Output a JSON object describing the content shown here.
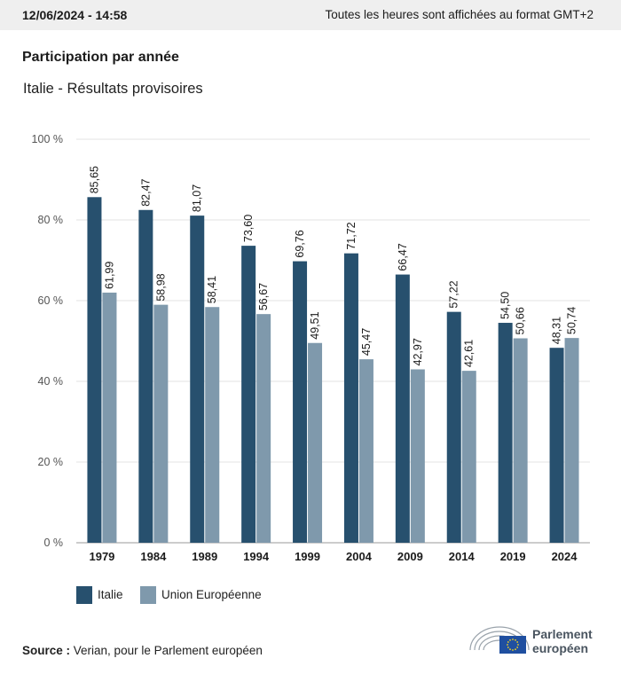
{
  "header": {
    "timestamp": "12/06/2024 - 14:58",
    "timezone_note": "Toutes les heures sont affichées au format GMT+2"
  },
  "title": "Participation par année",
  "subtitle": "Italie - Résultats provisoires",
  "chart_data": {
    "type": "bar",
    "categories": [
      "1979",
      "1984",
      "1989",
      "1994",
      "1999",
      "2004",
      "2009",
      "2014",
      "2019",
      "2024"
    ],
    "series": [
      {
        "name": "Italie",
        "values": [
          85.65,
          82.47,
          81.07,
          73.6,
          69.76,
          71.72,
          66.47,
          57.22,
          54.5,
          48.31
        ],
        "labels": [
          "85,65",
          "82,47",
          "81,07",
          "73,60",
          "69,76",
          "71,72",
          "66,47",
          "57,22",
          "54,50",
          "48,31"
        ],
        "color": "#27506e"
      },
      {
        "name": "Union Européenne",
        "values": [
          61.99,
          58.98,
          58.41,
          56.67,
          49.51,
          45.47,
          42.97,
          42.61,
          50.66,
          50.74
        ],
        "labels": [
          "61,99",
          "58,98",
          "58,41",
          "56,67",
          "49,51",
          "45,47",
          "42,97",
          "42,61",
          "50,66",
          "50,74"
        ],
        "color": "#7f99ac"
      }
    ],
    "ylim": [
      0,
      100
    ],
    "yticks": [
      "0 %",
      "20 %",
      "40 %",
      "60 %",
      "80 %",
      "100 %"
    ],
    "grid": true,
    "legend_position": "bottom-left"
  },
  "source": {
    "label": "Source :",
    "text": "Verian, pour le Parlement européen"
  },
  "logo": {
    "line1": "Parlement",
    "line2": "européen",
    "flag_color": "#1f4fa0",
    "star_color": "#f4d21f"
  }
}
